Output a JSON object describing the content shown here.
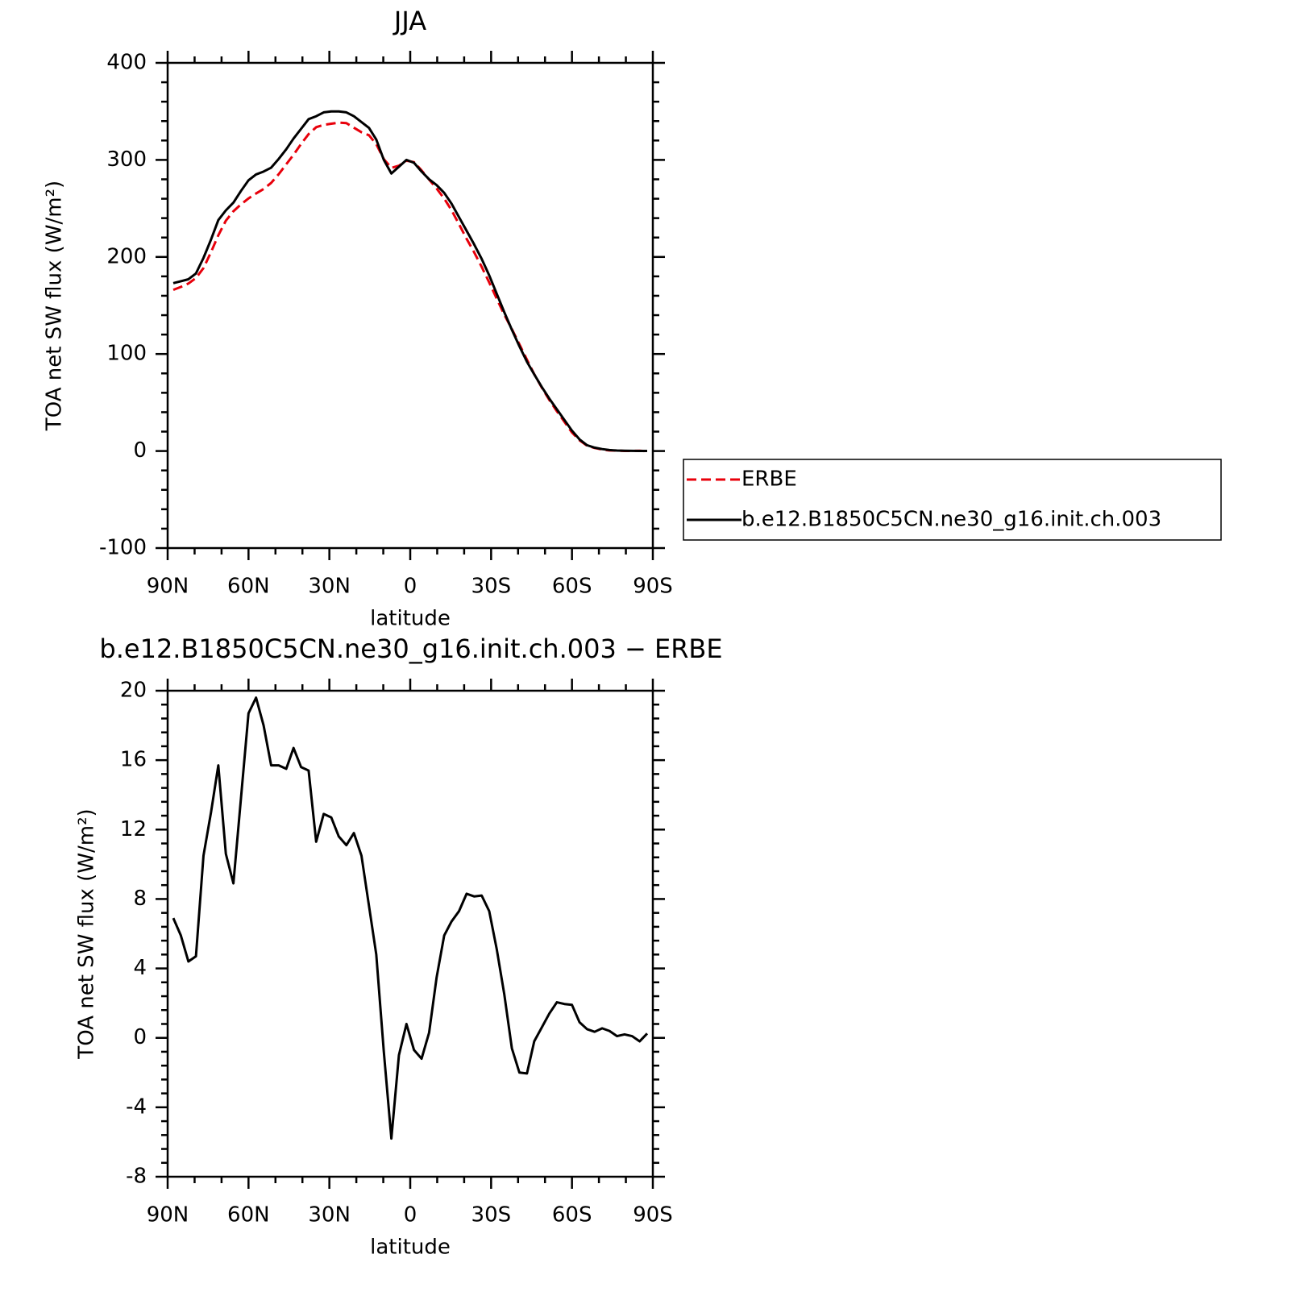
{
  "chart_data": [
    {
      "type": "line",
      "title": "JJA",
      "xlabel": "latitude",
      "ylabel": "TOA net SW flux (W/m²)",
      "x": [
        87.9,
        85.1,
        82.3,
        79.5,
        76.7,
        73.9,
        71.2,
        68.4,
        65.6,
        62.8,
        60.0,
        57.2,
        54.4,
        51.6,
        48.8,
        46.0,
        43.3,
        40.5,
        37.7,
        34.9,
        32.1,
        29.3,
        26.5,
        23.7,
        20.9,
        18.1,
        15.3,
        12.6,
        9.8,
        7.0,
        4.2,
        1.4,
        -1.4,
        -4.2,
        -7.0,
        -9.8,
        -12.6,
        -15.3,
        -18.1,
        -20.9,
        -23.7,
        -26.5,
        -29.3,
        -32.1,
        -34.9,
        -37.7,
        -40.5,
        -43.3,
        -46.0,
        -48.8,
        -51.6,
        -54.4,
        -57.2,
        -60.0,
        -62.8,
        -65.6,
        -68.4,
        -71.2,
        -73.9,
        -76.7,
        -79.5,
        -82.3,
        -85.1,
        -87.9
      ],
      "series": [
        {
          "name": "ERBE",
          "color": "#e8000b",
          "linestyle": "dashed",
          "values": [
            166.1,
            169.1,
            172.6,
            178.3,
            188.5,
            205,
            222.3,
            237.4,
            247.1,
            254.2,
            260.3,
            265.4,
            270,
            276.3,
            285.3,
            295.5,
            305.3,
            316.4,
            326.6,
            333.7,
            336.1,
            337.3,
            338.4,
            337.9,
            333.2,
            328.5,
            325.4,
            316.2,
            300.8,
            291.8,
            294,
            299.2,
            297.7,
            289.2,
            279.7,
            270.5,
            260.1,
            248.3,
            233.7,
            218.7,
            204.9,
            189.8,
            173.7,
            156.9,
            140.5,
            125.6,
            110,
            94.1,
            79.2,
            65.4,
            52.6,
            41,
            30.1,
            19.1,
            11.1,
            5.5,
            3.2,
            1.5,
            0.6,
            0.4,
            0.1,
            0.1,
            0.3,
            -0.2
          ]
        },
        {
          "name": "b.e12.B1850C5CN.ne30_g16.init.ch.003",
          "color": "#000000",
          "linestyle": "solid",
          "values": [
            173,
            175,
            177,
            183,
            199,
            218,
            238,
            248,
            256,
            268,
            279,
            285,
            288,
            292,
            301,
            311,
            322,
            332,
            342,
            345,
            349,
            350,
            350,
            349,
            345,
            339,
            333,
            321,
            300,
            286,
            293,
            300,
            297,
            288,
            280,
            274,
            266,
            255,
            241,
            227,
            213,
            198,
            181,
            162,
            143,
            125,
            108,
            92,
            79,
            66,
            54,
            43,
            32,
            21,
            12,
            6,
            3.5,
            2,
            1,
            0.5,
            0.3,
            0.2,
            0.1,
            0.1
          ]
        }
      ],
      "xlim": [
        90,
        -90
      ],
      "xticks": [
        {
          "value": 90,
          "label": "90N"
        },
        {
          "value": 60,
          "label": "60N"
        },
        {
          "value": 30,
          "label": "30N"
        },
        0,
        {
          "value": -30,
          "label": "30S"
        },
        {
          "value": -60,
          "label": "60S"
        },
        {
          "value": -90,
          "label": "90S"
        }
      ],
      "ylim": [
        -100,
        400
      ],
      "yticks": [
        -100,
        0,
        100,
        200,
        300,
        400
      ],
      "legend": "outside right"
    },
    {
      "type": "line",
      "title": "b.e12.B1850C5CN.ne30_g16.init.ch.003 − ERBE",
      "xlabel": "latitude",
      "ylabel": "TOA net SW flux (W/m²)",
      "x": [
        87.9,
        85.1,
        82.3,
        79.5,
        76.7,
        73.9,
        71.2,
        68.4,
        65.6,
        62.8,
        60.0,
        57.2,
        54.4,
        51.6,
        48.8,
        46.0,
        43.3,
        40.5,
        37.7,
        34.9,
        32.1,
        29.3,
        26.5,
        23.7,
        20.9,
        18.1,
        15.3,
        12.6,
        9.8,
        7.0,
        4.2,
        1.4,
        -1.4,
        -4.2,
        -7.0,
        -9.8,
        -12.6,
        -15.3,
        -18.1,
        -20.9,
        -23.7,
        -26.5,
        -29.3,
        -32.1,
        -34.9,
        -37.7,
        -40.5,
        -43.3,
        -46.0,
        -48.8,
        -51.6,
        -54.4,
        -57.2,
        -60.0,
        -62.8,
        -65.6,
        -68.4,
        -71.2,
        -73.9,
        -76.7,
        -79.5,
        -82.3,
        -85.1,
        -87.9
      ],
      "series": [
        {
          "color": "#000000",
          "linestyle": "solid",
          "values": [
            6.9,
            5.9,
            4.4,
            4.7,
            10.5,
            13,
            15.7,
            10.6,
            8.9,
            13.8,
            18.7,
            19.6,
            18,
            15.7,
            15.7,
            15.5,
            16.7,
            15.6,
            15.4,
            11.3,
            12.9,
            12.7,
            11.6,
            11.1,
            11.8,
            10.5,
            7.6,
            4.8,
            -0.8,
            -5.8,
            -1,
            0.8,
            -0.7,
            -1.2,
            0.3,
            3.5,
            5.9,
            6.7,
            7.3,
            8.3,
            8.15,
            8.2,
            7.3,
            5.1,
            2.5,
            -0.6,
            -2,
            -2.05,
            -0.2,
            0.6,
            1.4,
            2.05,
            1.95,
            1.9,
            0.9,
            0.5,
            0.35,
            0.55,
            0.4,
            0.1,
            0.2,
            0.1,
            -0.2,
            0.25
          ]
        }
      ],
      "xlim": [
        90,
        -90
      ],
      "xticks": [
        {
          "value": 90,
          "label": "90N"
        },
        {
          "value": 60,
          "label": "60N"
        },
        {
          "value": 30,
          "label": "30N"
        },
        0,
        {
          "value": -30,
          "label": "30S"
        },
        {
          "value": -60,
          "label": "60S"
        },
        {
          "value": -90,
          "label": "90S"
        }
      ],
      "ylim": [
        -8,
        20
      ],
      "yticks": [
        -8,
        -4,
        0,
        4,
        8,
        12,
        16,
        20
      ]
    }
  ]
}
